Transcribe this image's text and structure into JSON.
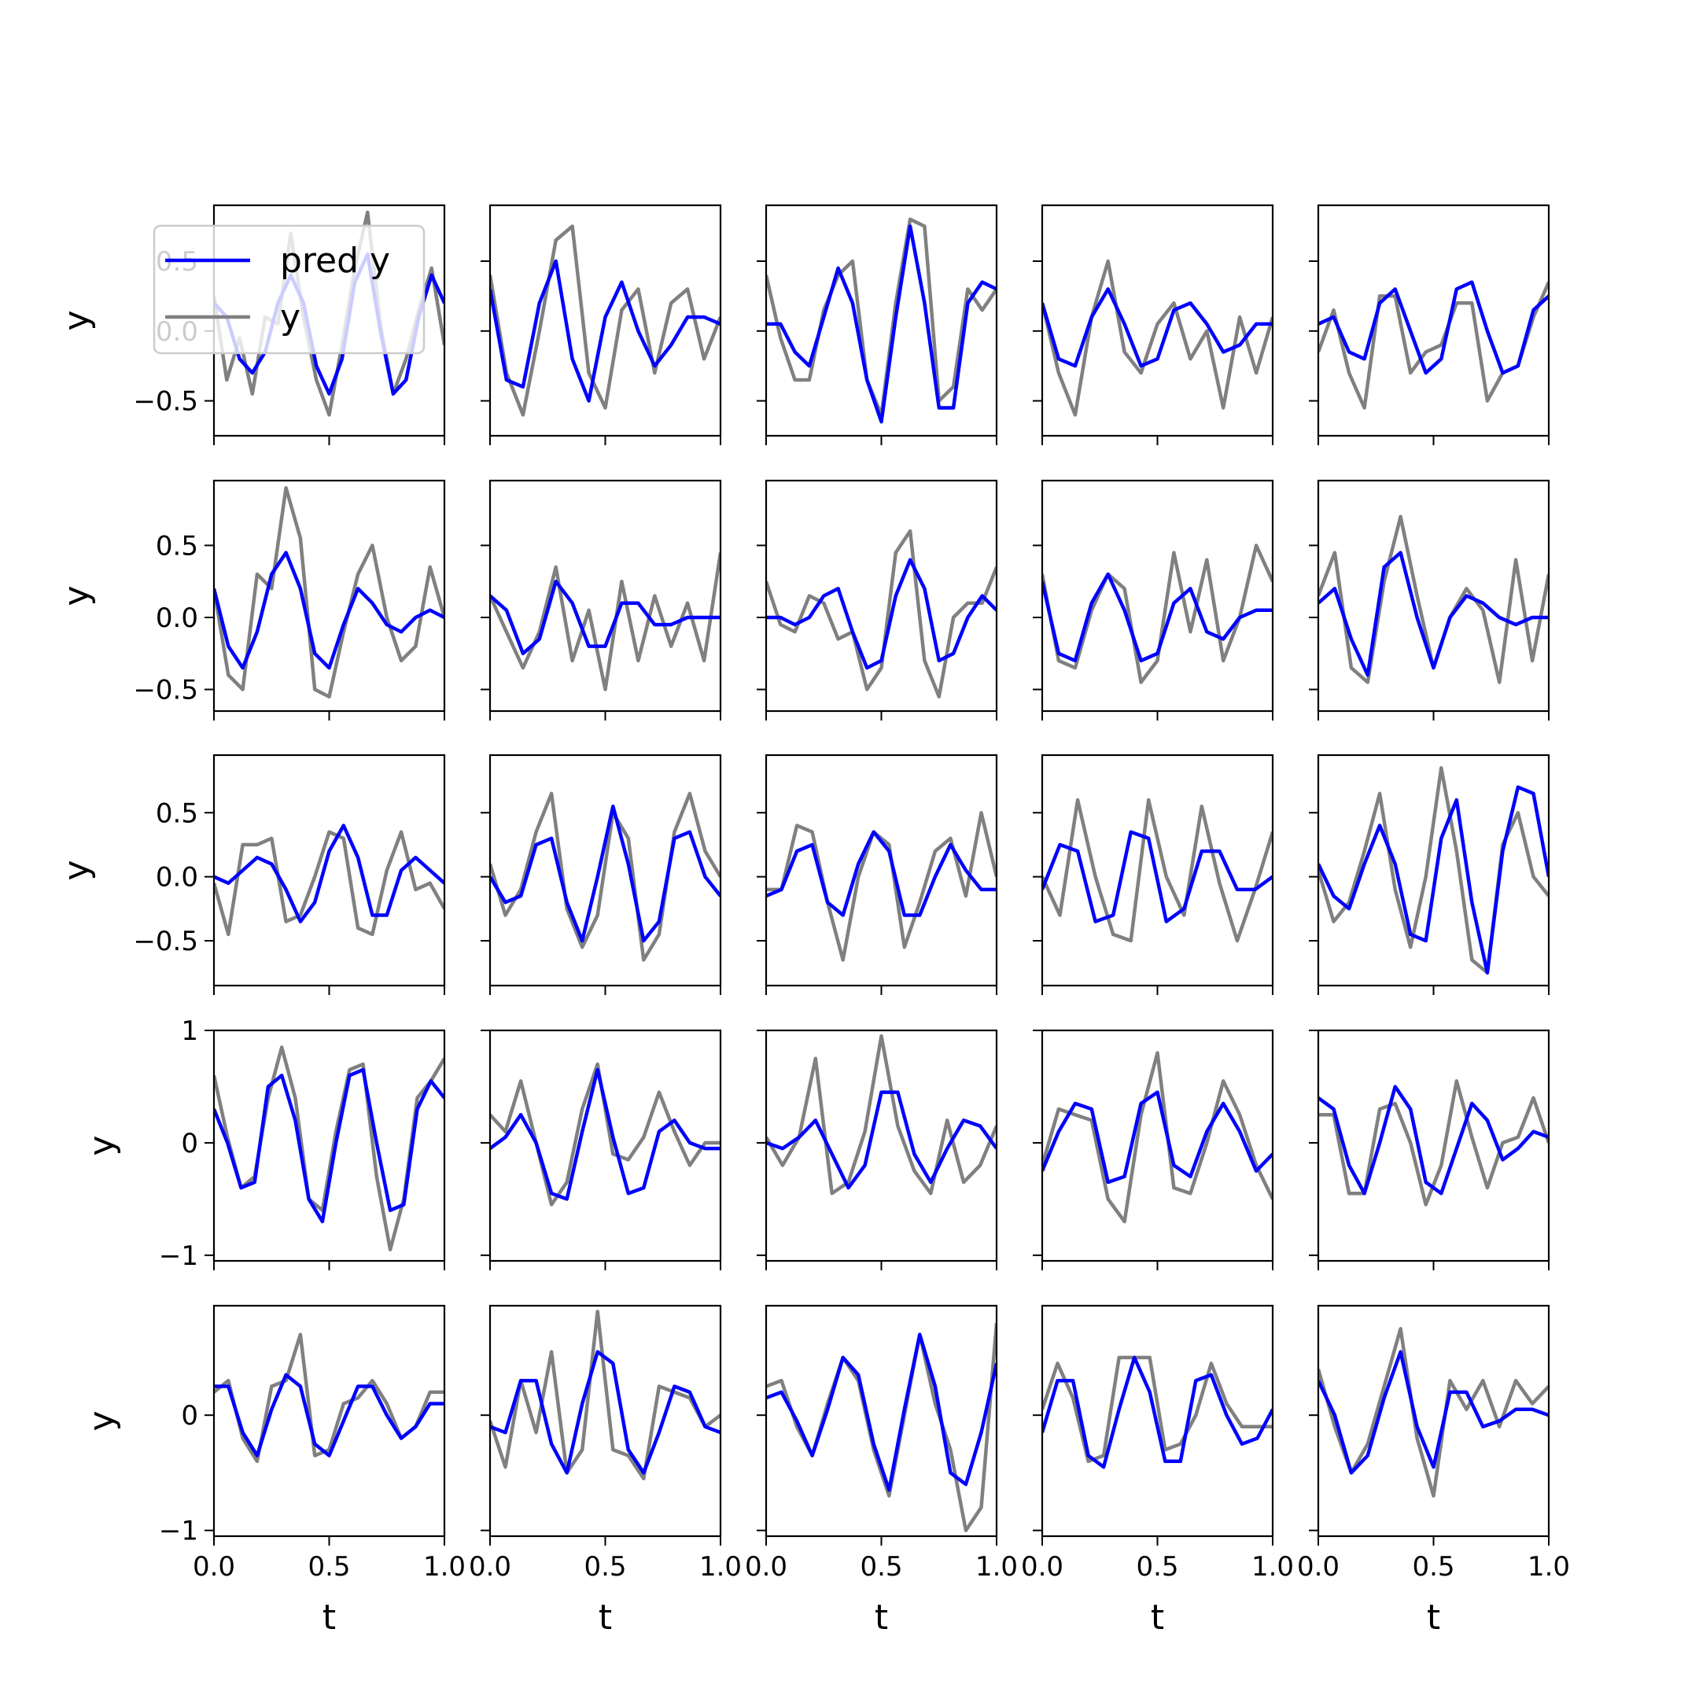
{
  "chart_data": {
    "type": "line",
    "layout": {
      "rows": 5,
      "cols": 5,
      "sharex": true,
      "sharey": "row"
    },
    "xlabel": "t",
    "ylabel": "y",
    "xlim": [
      0,
      1
    ],
    "xticks": [
      0,
      0.5,
      1
    ],
    "xtick_labels": [
      "0.0",
      "0.5",
      "1.0"
    ],
    "series_meta": [
      {
        "name": "pred y",
        "color": "#0000ff"
      },
      {
        "name": "y",
        "color": "#808080"
      }
    ],
    "legend": {
      "location": "top-left",
      "entries": [
        "pred y",
        "y"
      ]
    },
    "rows": [
      {
        "ylim": [
          -0.75,
          0.9
        ],
        "yticks": [
          -0.5,
          0,
          0.5
        ],
        "ytick_labels": [
          "−0.5",
          "0.0",
          "0.5"
        ]
      },
      {
        "ylim": [
          -0.65,
          0.95
        ],
        "yticks": [
          -0.5,
          0,
          0.5
        ],
        "ytick_labels": [
          "−0.5",
          "0.0",
          "0.5"
        ]
      },
      {
        "ylim": [
          -0.85,
          0.95
        ],
        "yticks": [
          -0.5,
          0,
          0.5
        ],
        "ytick_labels": [
          "−0.5",
          "0.0",
          "0.5"
        ]
      },
      {
        "ylim": [
          -1.05,
          1.0
        ],
        "yticks": [
          -1,
          0,
          1
        ],
        "ytick_labels": [
          "−1",
          "0",
          "1"
        ]
      },
      {
        "ylim": [
          -1.05,
          0.95
        ],
        "yticks": [
          -1,
          0
        ],
        "ytick_labels": [
          "−1",
          "0"
        ]
      }
    ],
    "panels": [
      {
        "row": 0,
        "col": 0,
        "pred": [
          0.2,
          0.1,
          -0.2,
          -0.3,
          -0.15,
          0.2,
          0.4,
          0.2,
          -0.25,
          -0.45,
          -0.2,
          0.35,
          0.55,
          0.0,
          -0.45,
          -0.35,
          0.1,
          0.4,
          0.2
        ],
        "y": [
          0.25,
          -0.35,
          -0.05,
          -0.45,
          0.1,
          0.05,
          0.7,
          0.1,
          -0.35,
          -0.6,
          -0.1,
          0.45,
          0.85,
          0.05,
          -0.45,
          -0.2,
          0.15,
          0.45,
          -0.1
        ]
      },
      {
        "row": 1,
        "col": 0,
        "pred": [
          0.2,
          -0.2,
          -0.35,
          -0.1,
          0.3,
          0.45,
          0.2,
          -0.25,
          -0.35,
          -0.05,
          0.2,
          0.1,
          -0.05,
          -0.1,
          0.0,
          0.05,
          0.0
        ],
        "y": [
          0.2,
          -0.4,
          -0.5,
          0.3,
          0.2,
          0.9,
          0.55,
          -0.5,
          -0.55,
          -0.1,
          0.3,
          0.5,
          0.0,
          -0.3,
          -0.2,
          0.35,
          0.0
        ]
      },
      {
        "row": 2,
        "col": 0,
        "pred": [
          0.0,
          -0.05,
          0.05,
          0.15,
          0.1,
          -0.1,
          -0.35,
          -0.2,
          0.2,
          0.4,
          0.15,
          -0.3,
          -0.3,
          0.05,
          0.15,
          0.05,
          -0.05
        ],
        "y": [
          -0.05,
          -0.45,
          0.25,
          0.25,
          0.3,
          -0.35,
          -0.3,
          0.0,
          0.35,
          0.3,
          -0.4,
          -0.45,
          0.05,
          0.35,
          -0.1,
          -0.05,
          -0.25
        ]
      },
      {
        "row": 3,
        "col": 0,
        "pred": [
          0.3,
          0.0,
          -0.4,
          -0.35,
          0.5,
          0.6,
          0.2,
          -0.5,
          -0.7,
          0.0,
          0.6,
          0.65,
          0.0,
          -0.6,
          -0.55,
          0.3,
          0.55,
          0.4
        ],
        "y": [
          0.6,
          0.05,
          -0.4,
          -0.3,
          0.4,
          0.85,
          0.4,
          -0.5,
          -0.6,
          0.1,
          0.65,
          0.7,
          -0.3,
          -0.95,
          -0.5,
          0.4,
          0.55,
          0.75
        ]
      },
      {
        "row": 4,
        "col": 0,
        "pred": [
          0.25,
          0.25,
          -0.15,
          -0.35,
          0.05,
          0.35,
          0.25,
          -0.25,
          -0.35,
          -0.05,
          0.25,
          0.25,
          0.0,
          -0.2,
          -0.1,
          0.1,
          0.1
        ],
        "y": [
          0.2,
          0.3,
          -0.2,
          -0.4,
          0.25,
          0.3,
          0.7,
          -0.35,
          -0.3,
          0.1,
          0.15,
          0.3,
          0.1,
          -0.2,
          -0.1,
          0.2,
          0.2
        ]
      },
      {
        "row": 0,
        "col": 1,
        "pred": [
          0.3,
          -0.35,
          -0.4,
          0.2,
          0.5,
          -0.2,
          -0.5,
          0.1,
          0.35,
          0.0,
          -0.25,
          -0.1,
          0.1,
          0.1,
          0.05
        ],
        "y": [
          0.4,
          -0.3,
          -0.6,
          0.0,
          0.65,
          0.75,
          -0.3,
          -0.55,
          0.15,
          0.3,
          -0.3,
          0.2,
          0.3,
          -0.2,
          0.1
        ]
      },
      {
        "row": 1,
        "col": 1,
        "pred": [
          0.15,
          0.05,
          -0.25,
          -0.15,
          0.25,
          0.1,
          -0.2,
          -0.2,
          0.1,
          0.1,
          -0.05,
          -0.05,
          0.0,
          0.0,
          0.0
        ],
        "y": [
          0.15,
          -0.1,
          -0.35,
          -0.1,
          0.35,
          -0.3,
          0.05,
          -0.5,
          0.25,
          -0.3,
          0.15,
          -0.2,
          0.1,
          -0.3,
          0.45
        ]
      },
      {
        "row": 2,
        "col": 1,
        "pred": [
          0.0,
          -0.2,
          -0.15,
          0.25,
          0.3,
          -0.2,
          -0.5,
          0.0,
          0.55,
          0.1,
          -0.5,
          -0.35,
          0.3,
          0.35,
          0.0,
          -0.15
        ],
        "y": [
          0.1,
          -0.3,
          -0.1,
          0.35,
          0.65,
          -0.25,
          -0.55,
          -0.3,
          0.5,
          0.3,
          -0.65,
          -0.45,
          0.35,
          0.65,
          0.2,
          0.0
        ]
      },
      {
        "row": 3,
        "col": 1,
        "pred": [
          -0.05,
          0.05,
          0.25,
          0.0,
          -0.45,
          -0.5,
          0.1,
          0.65,
          0.05,
          -0.45,
          -0.4,
          0.1,
          0.2,
          0.0,
          -0.05,
          -0.05
        ],
        "y": [
          0.25,
          0.1,
          0.55,
          0.0,
          -0.55,
          -0.35,
          0.3,
          0.7,
          -0.1,
          -0.15,
          0.05,
          0.45,
          0.1,
          -0.2,
          0.0,
          0.0
        ]
      },
      {
        "row": 4,
        "col": 1,
        "pred": [
          -0.1,
          -0.15,
          0.3,
          0.3,
          -0.25,
          -0.5,
          0.1,
          0.55,
          0.45,
          -0.3,
          -0.5,
          -0.15,
          0.25,
          0.2,
          -0.1,
          -0.15
        ],
        "y": [
          -0.05,
          -0.45,
          0.3,
          -0.15,
          0.55,
          -0.5,
          -0.3,
          0.9,
          -0.3,
          -0.35,
          -0.55,
          0.25,
          0.2,
          0.15,
          -0.1,
          0.0
        ]
      },
      {
        "row": 0,
        "col": 2,
        "pred": [
          0.05,
          0.05,
          -0.15,
          -0.25,
          0.1,
          0.45,
          0.2,
          -0.35,
          -0.65,
          0.1,
          0.75,
          0.2,
          -0.55,
          -0.55,
          0.2,
          0.35,
          0.3
        ],
        "y": [
          0.4,
          -0.05,
          -0.35,
          -0.35,
          0.15,
          0.4,
          0.5,
          -0.35,
          -0.6,
          0.2,
          0.8,
          0.75,
          -0.5,
          -0.4,
          0.3,
          0.15,
          0.3
        ]
      },
      {
        "row": 1,
        "col": 2,
        "pred": [
          0.0,
          0.0,
          -0.05,
          0.0,
          0.15,
          0.2,
          -0.1,
          -0.35,
          -0.3,
          0.15,
          0.4,
          0.2,
          -0.3,
          -0.25,
          0.0,
          0.15,
          0.05
        ],
        "y": [
          0.25,
          -0.05,
          -0.1,
          0.15,
          0.1,
          -0.15,
          -0.1,
          -0.5,
          -0.35,
          0.45,
          0.6,
          -0.3,
          -0.55,
          0.0,
          0.1,
          0.1,
          0.35
        ]
      },
      {
        "row": 2,
        "col": 2,
        "pred": [
          -0.15,
          -0.1,
          0.2,
          0.25,
          -0.2,
          -0.3,
          0.1,
          0.35,
          0.2,
          -0.3,
          -0.3,
          0.0,
          0.25,
          0.05,
          -0.1,
          -0.1
        ],
        "y": [
          -0.1,
          -0.1,
          0.4,
          0.35,
          -0.2,
          -0.65,
          0.0,
          0.35,
          0.25,
          -0.55,
          -0.2,
          0.2,
          0.3,
          -0.15,
          0.5,
          0.0
        ]
      },
      {
        "row": 3,
        "col": 2,
        "pred": [
          0.0,
          -0.05,
          0.05,
          0.2,
          -0.1,
          -0.4,
          -0.2,
          0.45,
          0.45,
          -0.1,
          -0.35,
          -0.05,
          0.2,
          0.15,
          -0.05
        ],
        "y": [
          0.05,
          -0.2,
          0.05,
          0.75,
          -0.45,
          -0.35,
          0.1,
          0.95,
          0.15,
          -0.25,
          -0.45,
          0.2,
          -0.35,
          -0.2,
          0.15
        ]
      },
      {
        "row": 4,
        "col": 2,
        "pred": [
          0.15,
          0.2,
          -0.05,
          -0.35,
          0.05,
          0.5,
          0.35,
          -0.25,
          -0.65,
          0.05,
          0.7,
          0.25,
          -0.5,
          -0.6,
          -0.15,
          0.45
        ],
        "y": [
          0.25,
          0.3,
          -0.1,
          -0.35,
          0.1,
          0.5,
          0.3,
          -0.3,
          -0.7,
          0.0,
          0.7,
          0.1,
          -0.3,
          -1.0,
          -0.8,
          0.8
        ]
      },
      {
        "row": 0,
        "col": 3,
        "pred": [
          0.2,
          -0.2,
          -0.25,
          0.1,
          0.3,
          0.05,
          -0.25,
          -0.2,
          0.15,
          0.2,
          0.05,
          -0.15,
          -0.1,
          0.05,
          0.05
        ],
        "y": [
          0.2,
          -0.3,
          -0.6,
          0.1,
          0.5,
          -0.15,
          -0.3,
          0.05,
          0.2,
          -0.2,
          0.0,
          -0.55,
          0.1,
          -0.3,
          0.1
        ]
      },
      {
        "row": 1,
        "col": 3,
        "pred": [
          0.25,
          -0.25,
          -0.3,
          0.1,
          0.3,
          0.05,
          -0.3,
          -0.25,
          0.1,
          0.2,
          -0.1,
          -0.15,
          0.0,
          0.05,
          0.05
        ],
        "y": [
          0.3,
          -0.3,
          -0.35,
          0.05,
          0.3,
          0.2,
          -0.45,
          -0.3,
          0.45,
          -0.1,
          0.4,
          -0.3,
          0.0,
          0.5,
          0.25
        ]
      },
      {
        "row": 2,
        "col": 3,
        "pred": [
          -0.1,
          0.25,
          0.2,
          -0.35,
          -0.3,
          0.35,
          0.3,
          -0.35,
          -0.25,
          0.2,
          0.2,
          -0.1,
          -0.1,
          0.0
        ],
        "y": [
          0.0,
          -0.3,
          0.6,
          0.0,
          -0.45,
          -0.5,
          0.6,
          0.0,
          -0.3,
          0.55,
          -0.05,
          -0.5,
          -0.1,
          0.35
        ]
      },
      {
        "row": 3,
        "col": 3,
        "pred": [
          -0.25,
          0.1,
          0.35,
          0.3,
          -0.35,
          -0.3,
          0.35,
          0.45,
          -0.2,
          -0.3,
          0.1,
          0.35,
          0.1,
          -0.25,
          -0.1
        ],
        "y": [
          -0.2,
          0.3,
          0.25,
          0.2,
          -0.5,
          -0.7,
          0.25,
          0.8,
          -0.4,
          -0.45,
          0.0,
          0.55,
          0.25,
          -0.2,
          -0.5
        ]
      },
      {
        "row": 4,
        "col": 3,
        "pred": [
          -0.15,
          0.3,
          0.3,
          -0.35,
          -0.45,
          0.05,
          0.5,
          0.2,
          -0.4,
          -0.4,
          0.3,
          0.35,
          0.0,
          -0.25,
          -0.2,
          0.05
        ],
        "y": [
          0.05,
          0.45,
          0.15,
          -0.4,
          -0.35,
          0.5,
          0.5,
          0.5,
          -0.3,
          -0.25,
          0.0,
          0.45,
          0.1,
          -0.1,
          -0.1,
          -0.1
        ]
      },
      {
        "row": 0,
        "col": 4,
        "pred": [
          0.05,
          0.1,
          -0.15,
          -0.2,
          0.2,
          0.3,
          0.0,
          -0.3,
          -0.2,
          0.3,
          0.35,
          0.0,
          -0.3,
          -0.25,
          0.15,
          0.25
        ],
        "y": [
          -0.15,
          0.15,
          -0.3,
          -0.55,
          0.25,
          0.25,
          -0.3,
          -0.15,
          -0.1,
          0.2,
          0.2,
          -0.5,
          -0.3,
          -0.25,
          0.1,
          0.35
        ]
      },
      {
        "row": 1,
        "col": 4,
        "pred": [
          0.1,
          0.2,
          -0.15,
          -0.4,
          0.35,
          0.45,
          0.0,
          -0.35,
          0.0,
          0.15,
          0.1,
          0.0,
          -0.05,
          0.0,
          0.0
        ],
        "y": [
          0.15,
          0.45,
          -0.35,
          -0.45,
          0.25,
          0.7,
          0.15,
          -0.35,
          0.0,
          0.2,
          0.05,
          -0.45,
          0.4,
          -0.3,
          0.3
        ]
      },
      {
        "row": 2,
        "col": 4,
        "pred": [
          0.1,
          -0.15,
          -0.25,
          0.1,
          0.4,
          0.1,
          -0.45,
          -0.5,
          0.3,
          0.6,
          -0.2,
          -0.75,
          0.2,
          0.7,
          0.65,
          0.0
        ],
        "y": [
          0.05,
          -0.35,
          -0.2,
          0.2,
          0.65,
          -0.1,
          -0.55,
          0.0,
          0.85,
          0.2,
          -0.65,
          -0.75,
          0.25,
          0.5,
          0.0,
          -0.15
        ]
      },
      {
        "row": 3,
        "col": 4,
        "pred": [
          0.4,
          0.3,
          -0.2,
          -0.45,
          0.0,
          0.5,
          0.3,
          -0.35,
          -0.45,
          -0.05,
          0.35,
          0.2,
          -0.15,
          -0.05,
          0.1,
          0.05
        ],
        "y": [
          0.25,
          0.25,
          -0.45,
          -0.45,
          0.3,
          0.35,
          0.0,
          -0.55,
          -0.2,
          0.55,
          0.05,
          -0.4,
          0.0,
          0.05,
          0.4,
          0.0
        ]
      },
      {
        "row": 4,
        "col": 4,
        "pred": [
          0.3,
          0.0,
          -0.5,
          -0.35,
          0.15,
          0.55,
          -0.1,
          -0.45,
          0.2,
          0.2,
          -0.1,
          -0.05,
          0.05,
          0.05,
          0.0
        ],
        "y": [
          0.4,
          -0.1,
          -0.5,
          -0.25,
          0.25,
          0.75,
          -0.2,
          -0.7,
          0.3,
          0.05,
          0.3,
          -0.1,
          0.3,
          0.1,
          0.25
        ]
      }
    ]
  }
}
